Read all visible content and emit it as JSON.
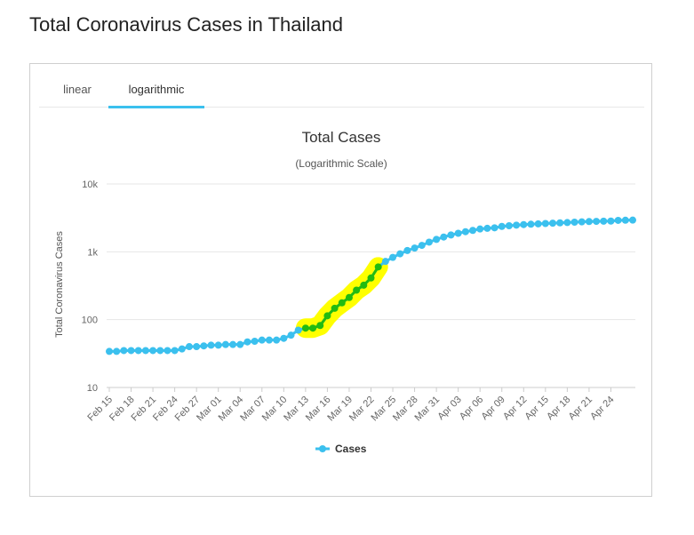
{
  "page": {
    "title": "Total Coronavirus Cases in Thailand"
  },
  "tabs": [
    {
      "label": "linear",
      "active": false
    },
    {
      "label": "logarithmic",
      "active": true
    }
  ],
  "colors": {
    "series": "#3bc0ee",
    "highlight_fill": "#ffff00",
    "highlight_line": "#22bb11",
    "tab_accent": "#3bc0ee"
  },
  "chart_data": {
    "type": "line",
    "title": "Total Cases",
    "subtitle": "(Logarithmic Scale)",
    "ylabel": "Total Coronavirus Cases",
    "xlabel": "",
    "yscale": "log",
    "ylim": [
      10,
      10000
    ],
    "yticks": [
      10,
      100,
      1000,
      10000
    ],
    "ytick_labels": [
      "10",
      "100",
      "1k",
      "10k"
    ],
    "xtick_labels": [
      "Feb 15",
      "Feb 18",
      "Feb 21",
      "Feb 24",
      "Feb 27",
      "Mar 01",
      "Mar 04",
      "Mar 07",
      "Mar 10",
      "Mar 13",
      "Mar 16",
      "Mar 19",
      "Mar 22",
      "Mar 25",
      "Mar 28",
      "Mar 31",
      "Apr 03",
      "Apr 06",
      "Apr 09",
      "Apr 12",
      "Apr 15",
      "Apr 18",
      "Apr 21",
      "Apr 24"
    ],
    "legend": {
      "position": "bottom-center",
      "entries": [
        "Cases"
      ]
    },
    "grid": true,
    "highlight_range": [
      "Mar 13",
      "Mar 23"
    ],
    "series": [
      {
        "name": "Cases",
        "x": [
          "Feb 15",
          "Feb 16",
          "Feb 17",
          "Feb 18",
          "Feb 19",
          "Feb 20",
          "Feb 21",
          "Feb 22",
          "Feb 23",
          "Feb 24",
          "Feb 25",
          "Feb 26",
          "Feb 27",
          "Feb 28",
          "Feb 29",
          "Mar 01",
          "Mar 02",
          "Mar 03",
          "Mar 04",
          "Mar 05",
          "Mar 06",
          "Mar 07",
          "Mar 08",
          "Mar 09",
          "Mar 10",
          "Mar 11",
          "Mar 12",
          "Mar 13",
          "Mar 14",
          "Mar 15",
          "Mar 16",
          "Mar 17",
          "Mar 18",
          "Mar 19",
          "Mar 20",
          "Mar 21",
          "Mar 22",
          "Mar 23",
          "Mar 24",
          "Mar 25",
          "Mar 26",
          "Mar 27",
          "Mar 28",
          "Mar 29",
          "Mar 30",
          "Mar 31",
          "Apr 01",
          "Apr 02",
          "Apr 03",
          "Apr 04",
          "Apr 05",
          "Apr 06",
          "Apr 07",
          "Apr 08",
          "Apr 09",
          "Apr 10",
          "Apr 11",
          "Apr 12",
          "Apr 13",
          "Apr 14",
          "Apr 15",
          "Apr 16",
          "Apr 17",
          "Apr 18",
          "Apr 19",
          "Apr 20",
          "Apr 21",
          "Apr 22",
          "Apr 23",
          "Apr 24",
          "Apr 25",
          "Apr 26",
          "Apr 27"
        ],
        "values": [
          34,
          34,
          35,
          35,
          35,
          35,
          35,
          35,
          35,
          35,
          37,
          40,
          40,
          41,
          42,
          42,
          43,
          43,
          43,
          47,
          48,
          50,
          50,
          50,
          53,
          59,
          70,
          75,
          75,
          82,
          114,
          147,
          177,
          212,
          272,
          322,
          411,
          599,
          721,
          827,
          934,
          1045,
          1136,
          1245,
          1388,
          1524,
          1651,
          1771,
          1875,
          1978,
          2067,
          2169,
          2220,
          2258,
          2369,
          2423,
          2473,
          2518,
          2551,
          2579,
          2613,
          2643,
          2672,
          2700,
          2733,
          2765,
          2792,
          2811,
          2826,
          2839,
          2907,
          2922,
          2931
        ]
      }
    ]
  }
}
